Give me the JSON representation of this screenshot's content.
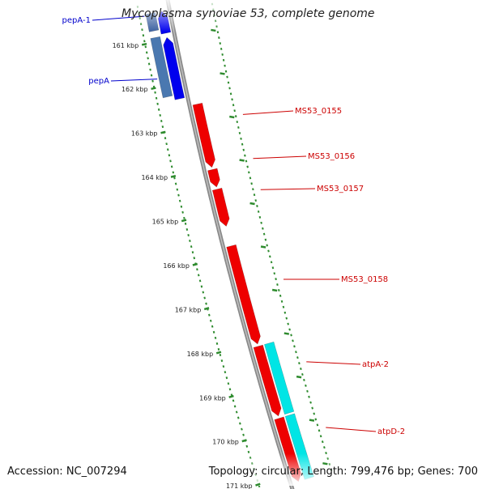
{
  "title": "Mycoplasma synoviae 53, complete genome",
  "footer": {
    "accession": "Accession: NC_007294",
    "summary": "Topology: circular; Length: 799,476 bp; Genes: 700"
  },
  "ticks": [
    {
      "label": "161 kbp",
      "pos": 161
    },
    {
      "label": "162 kbp",
      "pos": 162
    },
    {
      "label": "163 kbp",
      "pos": 163
    },
    {
      "label": "164 kbp",
      "pos": 164
    },
    {
      "label": "165 kbp",
      "pos": 165
    },
    {
      "label": "166 kbp",
      "pos": 166
    },
    {
      "label": "167 kbp",
      "pos": 167
    },
    {
      "label": "168 kbp",
      "pos": 168
    },
    {
      "label": "169 kbp",
      "pos": 169
    },
    {
      "label": "170 kbp",
      "pos": 170
    },
    {
      "label": "171 kbp",
      "pos": 171
    }
  ],
  "genes": [
    {
      "name": "pepA-1",
      "labelled": true,
      "strand": "reverse",
      "track": "cds",
      "start": 160.35,
      "end": 160.85,
      "color": "#0000ee",
      "label_color": "#0000cc"
    },
    {
      "name": "pepA-1 block",
      "labelled": false,
      "strand": "reverse",
      "track": "feature",
      "start": 160.35,
      "end": 160.75,
      "color": "#3a5fa0",
      "label_color": "#0000cc"
    },
    {
      "name": "pepA",
      "labelled": true,
      "strand": "reverse",
      "track": "cds",
      "start": 160.95,
      "end": 162.35,
      "color": "#0000ee",
      "label_color": "#0000cc"
    },
    {
      "name": "pepA block",
      "labelled": false,
      "strand": "reverse",
      "track": "feature",
      "start": 160.9,
      "end": 162.25,
      "color": "#4a78b0",
      "label_color": "#0000cc"
    },
    {
      "name": "MS53_0155",
      "labelled": true,
      "strand": "forward",
      "track": "cds",
      "start": 162.55,
      "end": 164.0,
      "color": "#ee0000",
      "label_color": "#cc0000"
    },
    {
      "name": "MS53_0156",
      "labelled": true,
      "strand": "forward",
      "track": "cds",
      "start": 164.05,
      "end": 164.45,
      "color": "#ee0000",
      "label_color": "#cc0000"
    },
    {
      "name": "MS53_0157",
      "labelled": true,
      "strand": "forward",
      "track": "cds",
      "start": 164.5,
      "end": 165.35,
      "color": "#ee0000",
      "label_color": "#cc0000"
    },
    {
      "name": "MS53_0158",
      "labelled": true,
      "strand": "forward",
      "track": "cds",
      "start": 165.8,
      "end": 168.05,
      "color": "#ee0000",
      "label_color": "#cc0000"
    },
    {
      "name": "atpA-2",
      "labelled": true,
      "strand": "forward",
      "track": "cds",
      "start": 168.1,
      "end": 169.7,
      "color": "#ee0000",
      "label_color": "#cc0000"
    },
    {
      "name": "atpA-2 block",
      "labelled": false,
      "strand": "forward",
      "track": "feature",
      "start": 168.1,
      "end": 169.7,
      "color": "#00e5e5",
      "label_color": "#cc0000"
    },
    {
      "name": "atpD-2",
      "labelled": true,
      "strand": "forward",
      "track": "cds",
      "start": 169.75,
      "end": 171.2,
      "color": "#ee0000",
      "label_color": "#cc0000"
    },
    {
      "name": "atpD-2 block",
      "labelled": false,
      "strand": "forward",
      "track": "feature",
      "start": 169.75,
      "end": 171.2,
      "color": "#00e5e5",
      "label_color": "#cc0000"
    }
  ],
  "colors": {
    "backbone": "#8a8a8a",
    "scale_dots": "#2e8b2e",
    "forward_cds": "#ee0000",
    "reverse_cds": "#0000ee",
    "cyan_feature": "#00e5e5"
  }
}
